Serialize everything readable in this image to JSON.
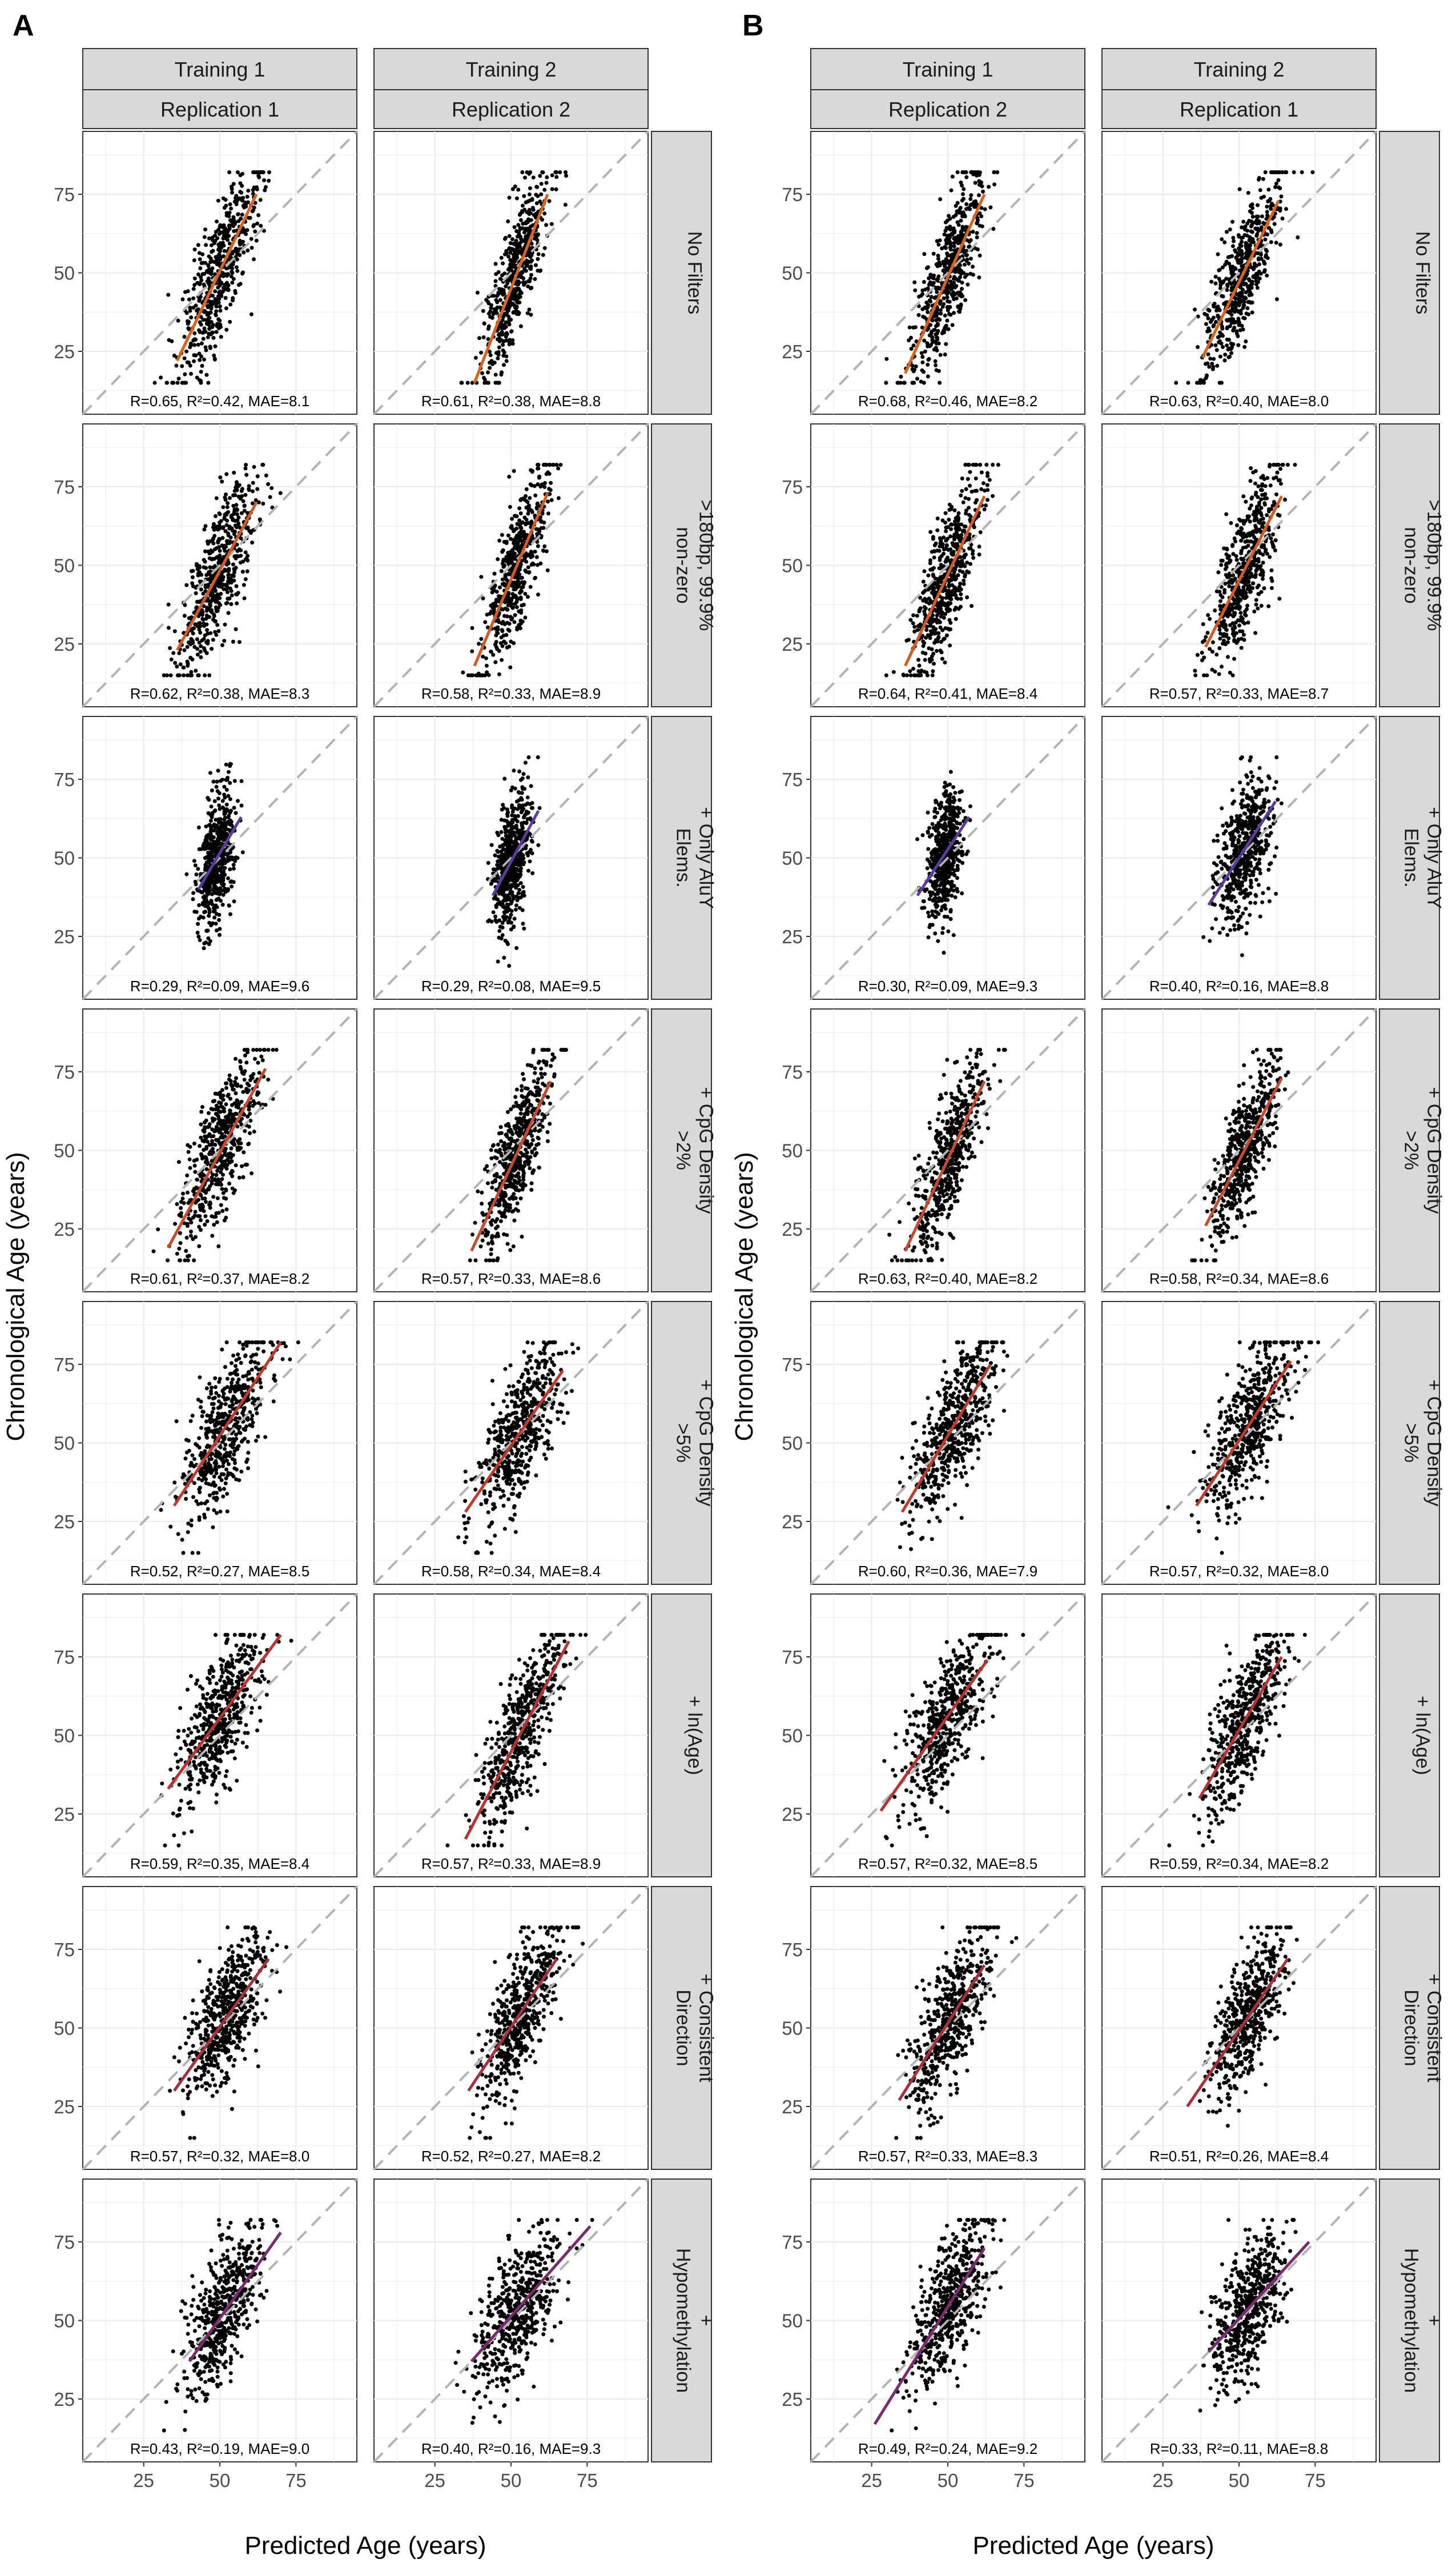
{
  "figure": {
    "panel_letters": [
      "A",
      "B"
    ],
    "x_axis_title": "Predicted Age (years)",
    "y_axis_title": "Chronological Age (years)",
    "x_ticks": [
      25,
      50,
      75
    ],
    "y_ticks": [
      25,
      50,
      75
    ],
    "axis_range": [
      5,
      95
    ],
    "reference_line": "y = x (dashed grey)",
    "point_color": "#000000",
    "reference_color": "#b3b3b3",
    "strip_fill": "#d9d9d9",
    "grid_color": "#ebebeb"
  },
  "panels": [
    {
      "letter": "A",
      "column_headers": [
        {
          "training": "Training 1",
          "replication": "Replication 1"
        },
        {
          "training": "Training 2",
          "replication": "Replication 2"
        }
      ]
    },
    {
      "letter": "B",
      "column_headers": [
        {
          "training": "Training 1",
          "replication": "Replication 2"
        },
        {
          "training": "Training 2",
          "replication": "Replication 1"
        }
      ]
    }
  ],
  "row_labels": [
    [
      "No Filters"
    ],
    [
      ">180bp, 99.9%",
      "non-zero"
    ],
    [
      "+ Only AluY",
      "Elems."
    ],
    [
      "+ CpG Density",
      ">2%"
    ],
    [
      "+ CpG Density",
      ">5%"
    ],
    [
      "+ ln(Age)"
    ],
    [
      "+ Consistent",
      "Direction"
    ],
    [
      "+",
      "Hypomethylation"
    ]
  ],
  "chart_data": {
    "type": "scatter",
    "n_points_per_facet_approx": 550,
    "facets": [
      {
        "panel": "A",
        "row": 0,
        "col": 0,
        "stats": "R=0.65, R²=0.42, MAE=8.1",
        "predicted_mean": 50,
        "predicted_sd": 6.5,
        "fit": {
          "x": [
            36,
            62
          ],
          "y": [
            22,
            75
          ]
        },
        "fit_color": "#d9631b"
      },
      {
        "panel": "A",
        "row": 0,
        "col": 1,
        "stats": "R=0.61, R²=0.38, MAE=8.8",
        "predicted_mean": 52,
        "predicted_sd": 5.5,
        "fit": {
          "x": [
            38,
            62
          ],
          "y": [
            15,
            75
          ]
        },
        "fit_color": "#d9631b"
      },
      {
        "panel": "B",
        "row": 0,
        "col": 0,
        "stats": "R=0.68, R²=0.46, MAE=8.2",
        "predicted_mean": 50,
        "predicted_sd": 6.0,
        "fit": {
          "x": [
            36,
            62
          ],
          "y": [
            18,
            75
          ]
        },
        "fit_color": "#d9631b"
      },
      {
        "panel": "B",
        "row": 0,
        "col": 1,
        "stats": "R=0.63, R²=0.40, MAE=8.0",
        "predicted_mean": 51,
        "predicted_sd": 6.0,
        "fit": {
          "x": [
            38,
            63
          ],
          "y": [
            23,
            73
          ]
        },
        "fit_color": "#d9631b"
      },
      {
        "panel": "A",
        "row": 1,
        "col": 0,
        "stats": "R=0.62, R²=0.38, MAE=8.3",
        "predicted_mean": 50,
        "predicted_sd": 6.5,
        "fit": {
          "x": [
            36,
            62
          ],
          "y": [
            23,
            70
          ]
        },
        "fit_color": "#d45a20"
      },
      {
        "panel": "A",
        "row": 1,
        "col": 1,
        "stats": "R=0.58, R²=0.33, MAE=8.9",
        "predicted_mean": 52,
        "predicted_sd": 5.5,
        "fit": {
          "x": [
            38,
            62
          ],
          "y": [
            18,
            73
          ]
        },
        "fit_color": "#d45a20"
      },
      {
        "panel": "B",
        "row": 1,
        "col": 0,
        "stats": "R=0.64, R²=0.41, MAE=8.4",
        "predicted_mean": 50,
        "predicted_sd": 6.0,
        "fit": {
          "x": [
            36,
            62
          ],
          "y": [
            18,
            72
          ]
        },
        "fit_color": "#d45a20"
      },
      {
        "panel": "B",
        "row": 1,
        "col": 1,
        "stats": "R=0.57, R²=0.33, MAE=8.7",
        "predicted_mean": 52,
        "predicted_sd": 5.5,
        "fit": {
          "x": [
            39,
            64
          ],
          "y": [
            24,
            72
          ]
        },
        "fit_color": "#d45a20"
      },
      {
        "panel": "A",
        "row": 2,
        "col": 0,
        "stats": "R=0.29, R²=0.09, MAE=9.6",
        "predicted_mean": 49,
        "predicted_sd": 3.0,
        "fit": {
          "x": [
            43,
            57
          ],
          "y": [
            40,
            63
          ]
        },
        "fit_color": "#5b3b9c"
      },
      {
        "panel": "A",
        "row": 2,
        "col": 1,
        "stats": "R=0.29, R²=0.08, MAE=9.5",
        "predicted_mean": 50,
        "predicted_sd": 3.0,
        "fit": {
          "x": [
            44,
            59
          ],
          "y": [
            38,
            65
          ]
        },
        "fit_color": "#5b3b9c"
      },
      {
        "panel": "B",
        "row": 2,
        "col": 0,
        "stats": "R=0.30, R²=0.09, MAE=9.3",
        "predicted_mean": 49,
        "predicted_sd": 3.0,
        "fit": {
          "x": [
            40,
            57
          ],
          "y": [
            38,
            63
          ]
        },
        "fit_color": "#5b3b9c"
      },
      {
        "panel": "B",
        "row": 2,
        "col": 1,
        "stats": "R=0.40, R²=0.16, MAE=8.8",
        "predicted_mean": 52,
        "predicted_sd": 4.5,
        "fit": {
          "x": [
            40,
            62
          ],
          "y": [
            35,
            68
          ]
        },
        "fit_color": "#5b3b9c"
      },
      {
        "panel": "A",
        "row": 3,
        "col": 0,
        "stats": "R=0.61, R²=0.37, MAE=8.2",
        "predicted_mean": 50,
        "predicted_sd": 6.5,
        "fit": {
          "x": [
            33,
            65
          ],
          "y": [
            19,
            76
          ]
        },
        "fit_color": "#c84a2c"
      },
      {
        "panel": "A",
        "row": 3,
        "col": 1,
        "stats": "R=0.57, R²=0.33, MAE=8.6",
        "predicted_mean": 52,
        "predicted_sd": 5.5,
        "fit": {
          "x": [
            37,
            63
          ],
          "y": [
            18,
            72
          ]
        },
        "fit_color": "#c84a2c"
      },
      {
        "panel": "B",
        "row": 3,
        "col": 0,
        "stats": "R=0.63, R²=0.40, MAE=8.2",
        "predicted_mean": 50,
        "predicted_sd": 6.0,
        "fit": {
          "x": [
            36,
            62
          ],
          "y": [
            18,
            72
          ]
        },
        "fit_color": "#c84a2c"
      },
      {
        "panel": "B",
        "row": 3,
        "col": 1,
        "stats": "R=0.58, R²=0.34, MAE=8.6",
        "predicted_mean": 52,
        "predicted_sd": 5.5,
        "fit": {
          "x": [
            39,
            64
          ],
          "y": [
            26,
            73
          ]
        },
        "fit_color": "#c84a2c"
      },
      {
        "panel": "A",
        "row": 4,
        "col": 0,
        "stats": "R=0.52, R²=0.27, MAE=8.5",
        "predicted_mean": 52,
        "predicted_sd": 7.0,
        "fit": {
          "x": [
            35,
            70
          ],
          "y": [
            30,
            82
          ]
        },
        "fit_color": "#c0392b"
      },
      {
        "panel": "A",
        "row": 4,
        "col": 1,
        "stats": "R=0.58, R²=0.34, MAE=8.4",
        "predicted_mean": 52,
        "predicted_sd": 7.0,
        "fit": {
          "x": [
            35,
            67
          ],
          "y": [
            28,
            73
          ]
        },
        "fit_color": "#c0392b"
      },
      {
        "panel": "B",
        "row": 4,
        "col": 0,
        "stats": "R=0.60, R²=0.36, MAE=7.9",
        "predicted_mean": 52,
        "predicted_sd": 7.0,
        "fit": {
          "x": [
            35,
            64
          ],
          "y": [
            28,
            75
          ]
        },
        "fit_color": "#c0392b"
      },
      {
        "panel": "B",
        "row": 4,
        "col": 1,
        "stats": "R=0.57, R²=0.32, MAE=8.0",
        "predicted_mean": 53,
        "predicted_sd": 7.0,
        "fit": {
          "x": [
            36,
            67
          ],
          "y": [
            30,
            76
          ]
        },
        "fit_color": "#c0392b"
      },
      {
        "panel": "A",
        "row": 5,
        "col": 0,
        "stats": "R=0.59, R²=0.35, MAE=8.4",
        "predicted_mean": 50,
        "predicted_sd": 7.0,
        "fit": {
          "x": [
            33,
            70
          ],
          "y": [
            33,
            82
          ]
        },
        "fit_color": "#b8322f"
      },
      {
        "panel": "A",
        "row": 5,
        "col": 1,
        "stats": "R=0.57, R²=0.33, MAE=8.9",
        "predicted_mean": 53,
        "predicted_sd": 7.0,
        "fit": {
          "x": [
            35,
            69
          ],
          "y": [
            17,
            80
          ]
        },
        "fit_color": "#b8322f"
      },
      {
        "panel": "B",
        "row": 5,
        "col": 0,
        "stats": "R=0.57, R²=0.32, MAE=8.5",
        "predicted_mean": 50,
        "predicted_sd": 7.0,
        "fit": {
          "x": [
            28,
            63
          ],
          "y": [
            26,
            74
          ]
        },
        "fit_color": "#b8322f"
      },
      {
        "panel": "B",
        "row": 5,
        "col": 1,
        "stats": "R=0.59, R²=0.34, MAE=8.2",
        "predicted_mean": 52,
        "predicted_sd": 6.5,
        "fit": {
          "x": [
            37,
            64
          ],
          "y": [
            30,
            75
          ]
        },
        "fit_color": "#b8322f"
      },
      {
        "panel": "A",
        "row": 6,
        "col": 0,
        "stats": "R=0.57, R²=0.32, MAE=8.0",
        "predicted_mean": 52,
        "predicted_sd": 6.5,
        "fit": {
          "x": [
            35,
            66
          ],
          "y": [
            30,
            72
          ]
        },
        "fit_color": "#a8303a"
      },
      {
        "panel": "A",
        "row": 6,
        "col": 1,
        "stats": "R=0.52, R²=0.27, MAE=8.2",
        "predicted_mean": 53,
        "predicted_sd": 6.5,
        "fit": {
          "x": [
            36,
            65
          ],
          "y": [
            30,
            72
          ]
        },
        "fit_color": "#a8303a"
      },
      {
        "panel": "B",
        "row": 6,
        "col": 0,
        "stats": "R=0.57, R²=0.33, MAE=8.3",
        "predicted_mean": 51,
        "predicted_sd": 6.5,
        "fit": {
          "x": [
            34,
            62
          ],
          "y": [
            27,
            70
          ]
        },
        "fit_color": "#a8303a"
      },
      {
        "panel": "B",
        "row": 6,
        "col": 1,
        "stats": "R=0.51, R²=0.26, MAE=8.4",
        "predicted_mean": 53,
        "predicted_sd": 6.0,
        "fit": {
          "x": [
            33,
            66
          ],
          "y": [
            25,
            72
          ]
        },
        "fit_color": "#a8303a"
      },
      {
        "panel": "A",
        "row": 7,
        "col": 0,
        "stats": "R=0.43, R²=0.19, MAE=9.0",
        "predicted_mean": 51,
        "predicted_sd": 6.5,
        "fit": {
          "x": [
            40,
            70
          ],
          "y": [
            37,
            78
          ]
        },
        "fit_color": "#7a2a6e"
      },
      {
        "panel": "A",
        "row": 7,
        "col": 1,
        "stats": "R=0.40, R²=0.16, MAE=9.3",
        "predicted_mean": 52,
        "predicted_sd": 7.0,
        "fit": {
          "x": [
            37,
            76
          ],
          "y": [
            37,
            80
          ]
        },
        "fit_color": "#7a2a6e"
      },
      {
        "panel": "B",
        "row": 7,
        "col": 0,
        "stats": "R=0.49, R²=0.24, MAE=9.2",
        "predicted_mean": 50,
        "predicted_sd": 6.5,
        "fit": {
          "x": [
            26,
            62
          ],
          "y": [
            17,
            73
          ]
        },
        "fit_color": "#7a2a6e"
      },
      {
        "panel": "B",
        "row": 7,
        "col": 1,
        "stats": "R=0.33, R²=0.11, MAE=8.8",
        "predicted_mean": 53,
        "predicted_sd": 6.0,
        "fit": {
          "x": [
            40,
            73
          ],
          "y": [
            40,
            75
          ]
        },
        "fit_color": "#7a2a6e"
      }
    ]
  }
}
